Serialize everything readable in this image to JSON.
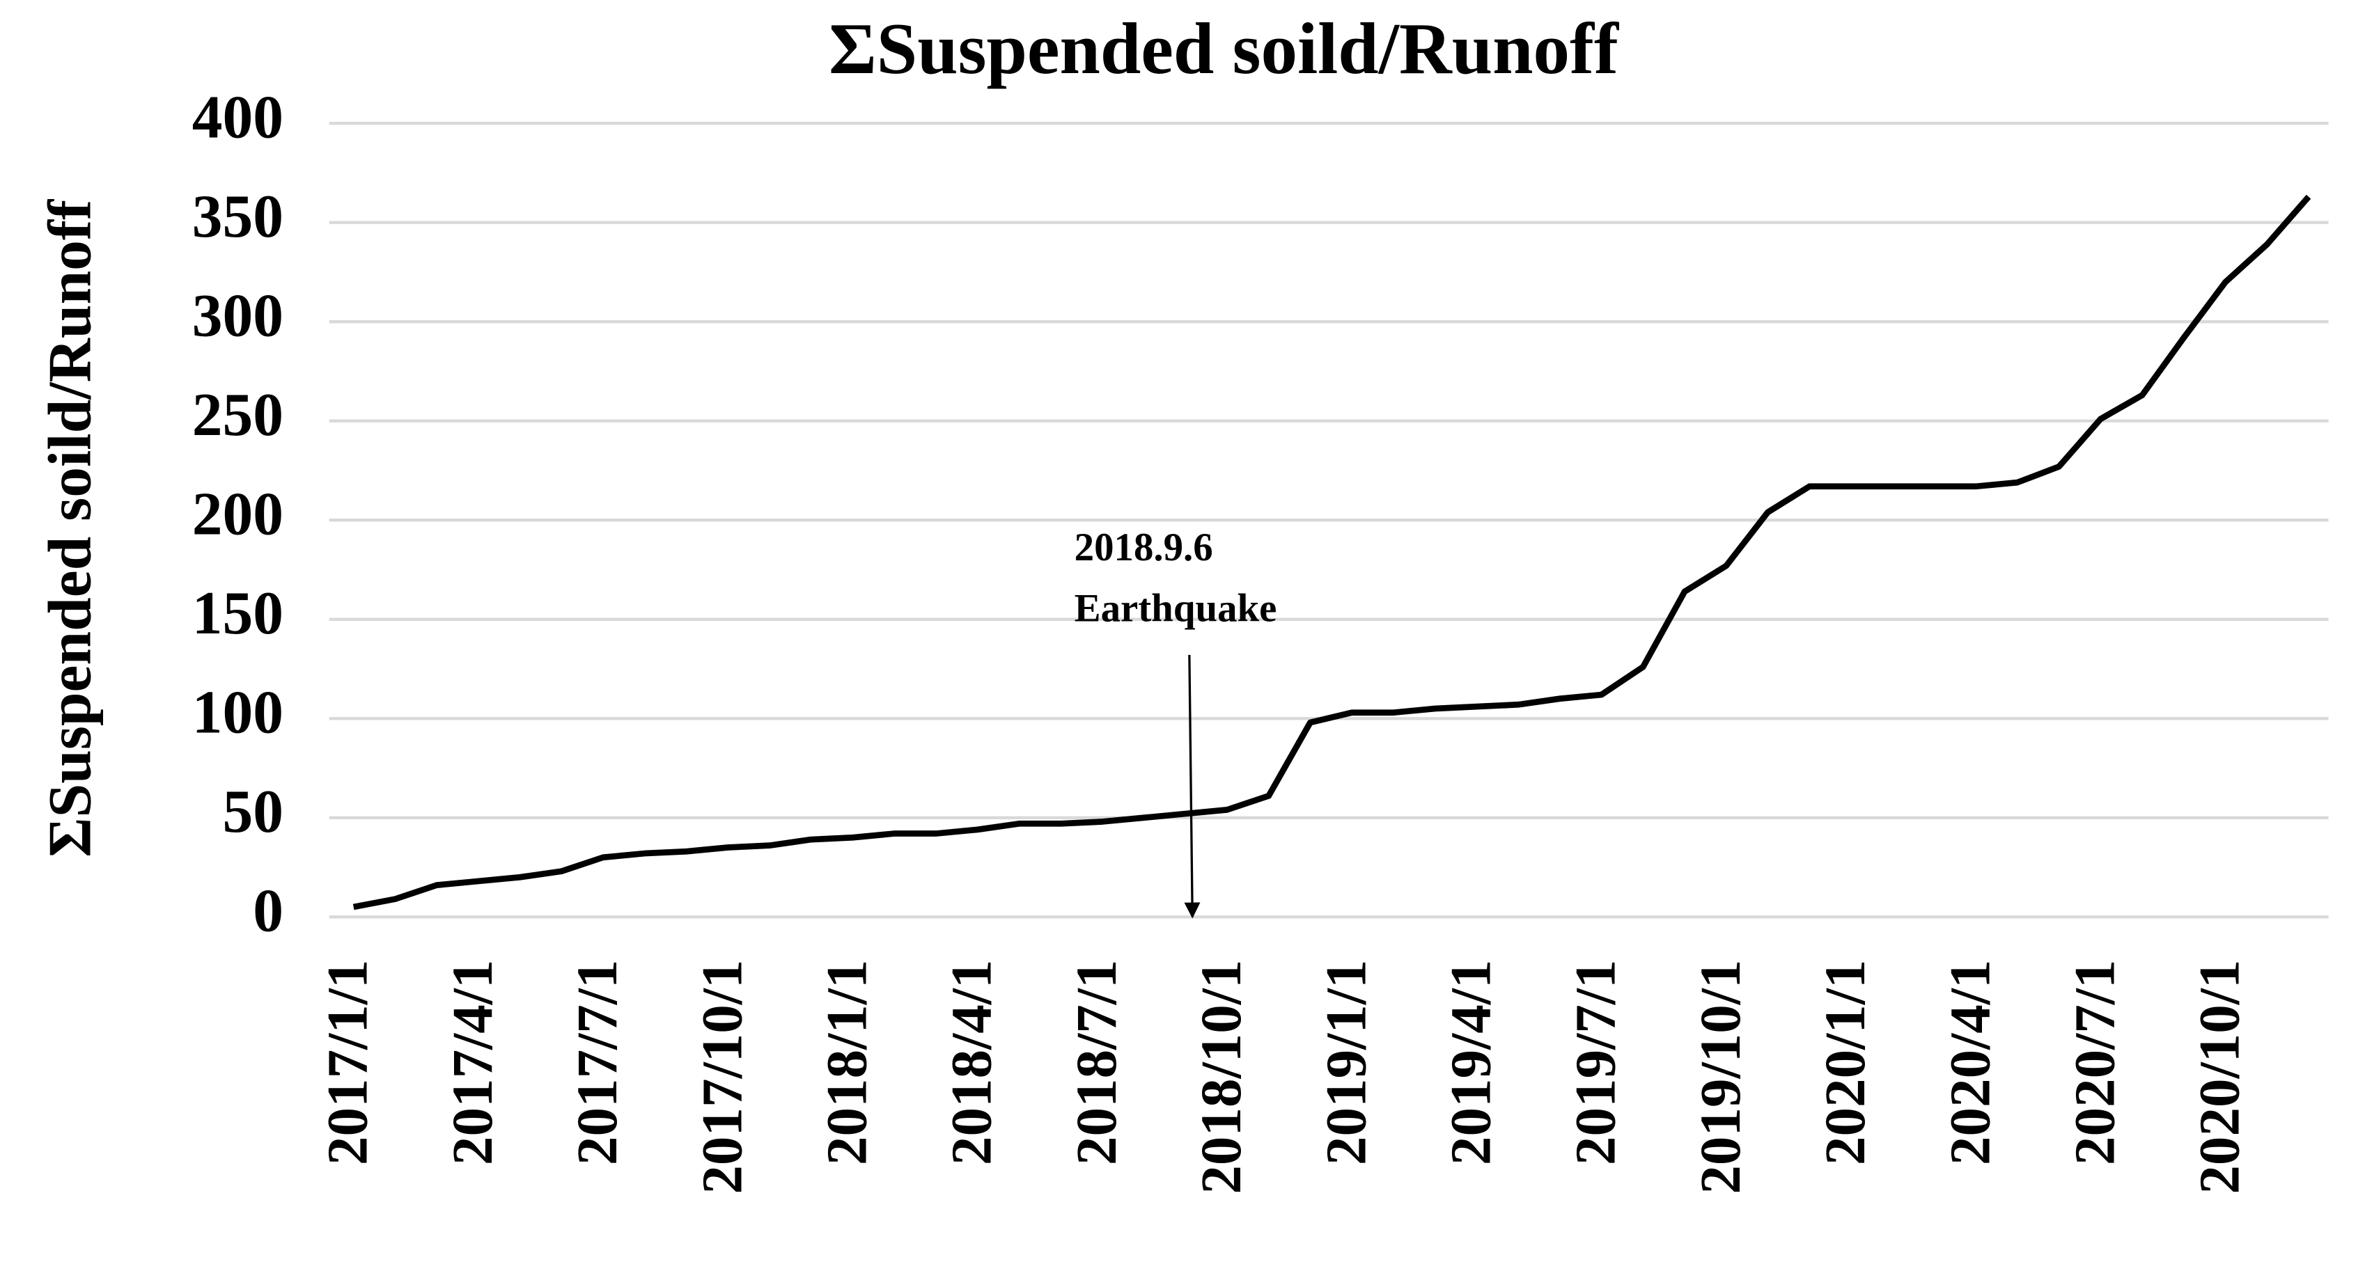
{
  "chart_data": {
    "type": "line",
    "title": "ΣSuspended soild/Runoff",
    "y_label": "ΣSuspended soild/Runoff",
    "categories": [
      "2017/1/1",
      null,
      null,
      "2017/4/1",
      null,
      null,
      "2017/7/1",
      null,
      null,
      "2017/10/1",
      null,
      null,
      "2018/1/1",
      null,
      null,
      "2018/4/1",
      null,
      null,
      "2018/7/1",
      null,
      null,
      "2018/10/1",
      null,
      null,
      "2019/1/1",
      null,
      null,
      "2019/4/1",
      null,
      null,
      "2019/7/1",
      null,
      null,
      "2019/10/1",
      null,
      null,
      "2020/1/1",
      null,
      null,
      "2020/4/1",
      null,
      null,
      "2020/7/1",
      null,
      null,
      "2020/10/1",
      null,
      null
    ],
    "series": [
      {
        "name": "ΣSuspended soild/Runoff",
        "color": "#000000",
        "values": [
          5,
          9,
          16,
          18,
          20,
          23,
          30,
          32,
          33,
          35,
          36,
          39,
          40,
          42,
          42,
          44,
          47,
          47,
          48,
          50,
          52,
          54,
          61,
          98,
          103,
          103,
          105,
          106,
          107,
          110,
          112,
          126,
          164,
          177,
          204,
          217,
          217,
          217,
          217,
          217,
          219,
          227,
          251,
          263,
          292,
          320,
          339,
          363
        ]
      }
    ],
    "ylim": [
      0,
      400
    ],
    "yticks": [
      0,
      50,
      100,
      150,
      200,
      250,
      300,
      350,
      400
    ],
    "grid": true,
    "annotations": [
      {
        "lines": [
          "2018.9.6",
          "Earthquake"
        ]
      }
    ]
  }
}
